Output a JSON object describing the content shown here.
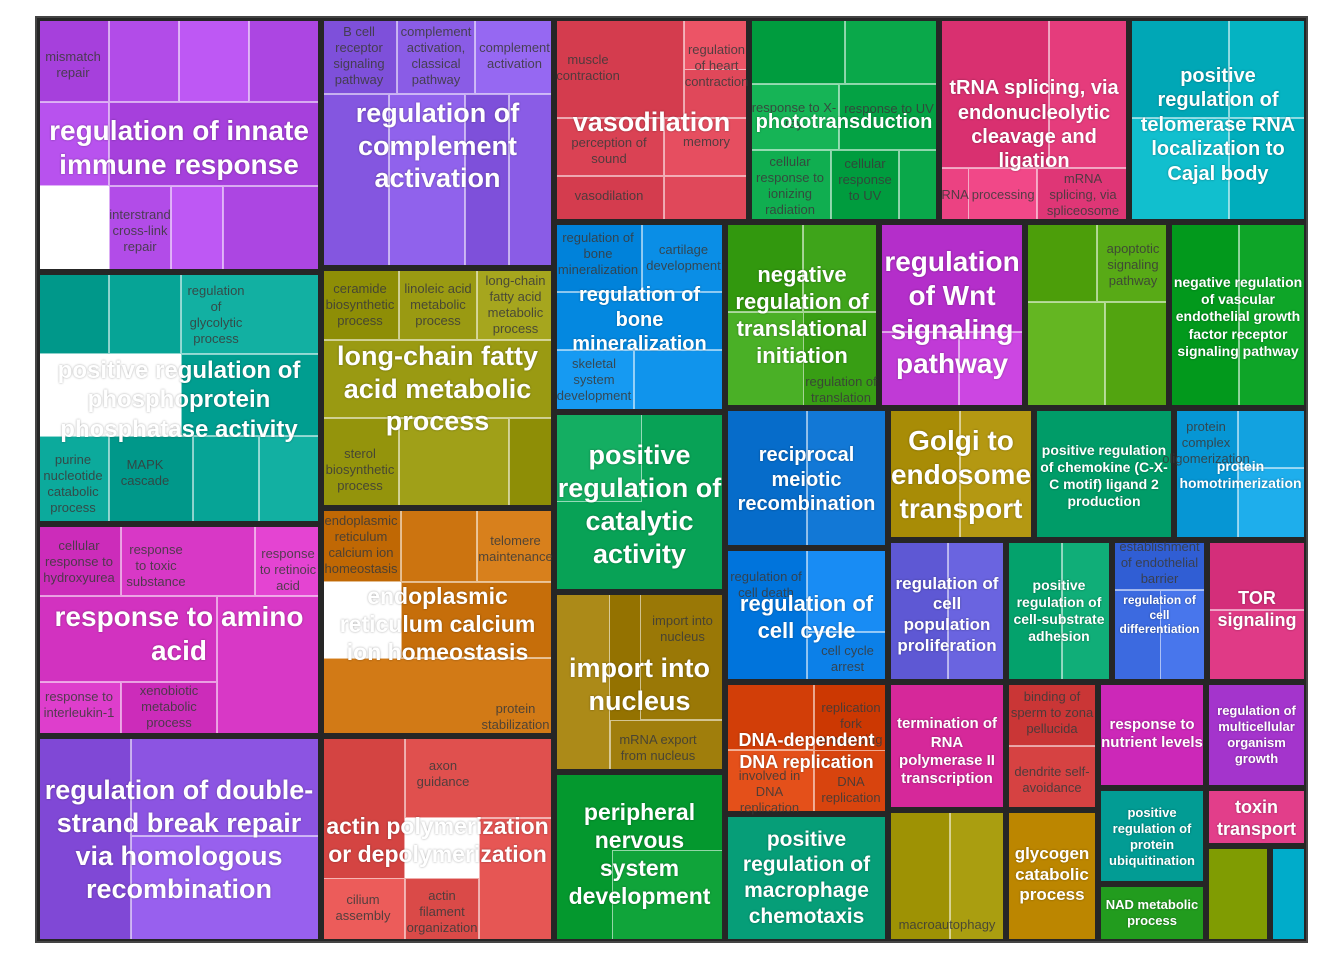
{
  "chart_data": {
    "type": "treemap",
    "groups": [
      {
        "name": "regulation of innate immune response",
        "color": "#b24ce8",
        "cells": [
          {
            "label": "mismatch repair"
          },
          {
            "label": ""
          },
          {
            "label": ""
          },
          {
            "label": ""
          },
          {
            "label": ""
          },
          {
            "label": "regulation of innate immune response"
          },
          {
            "label": "interstrand cross-link repair"
          },
          {
            "label": ""
          },
          {
            "label": ""
          }
        ]
      },
      {
        "name": "regulation of complement activation",
        "color": "#8a5ce6",
        "cells": [
          {
            "label": "B cell receptor signaling pathway"
          },
          {
            "label": "complement activation, classical pathway"
          },
          {
            "label": "complement activation"
          },
          {
            "label": ""
          },
          {
            "label": ""
          },
          {
            "label": ""
          },
          {
            "label": ""
          }
        ]
      },
      {
        "name": "vasodilation",
        "color": "#e0485a",
        "cells": [
          {
            "label": "muscle contraction"
          },
          {
            "label": ""
          },
          {
            "label": "regulation of heart contraction"
          },
          {
            "label": "perception of sound"
          },
          {
            "label": "memory"
          },
          {
            "label": "vasodilation"
          },
          {
            "label": ""
          }
        ]
      },
      {
        "name": "phototransduction",
        "color": "#0aa84a",
        "cells": [
          {
            "label": ""
          },
          {
            "label": ""
          },
          {
            "label": "response to X-ray"
          },
          {
            "label": "response to UV"
          },
          {
            "label": "cellular response to ionizing radiation"
          },
          {
            "label": "cellular response to UV"
          },
          {
            "label": ""
          }
        ]
      },
      {
        "name": "tRNA splicing, via endonucleolytic cleavage and ligation",
        "color": "#e53c7c",
        "cells": [
          {
            "label": ""
          },
          {
            "label": ""
          },
          {
            "label": "RNA processing"
          },
          {
            "label": "mRNA splicing, via spliceosome"
          },
          {
            "label": ""
          }
        ]
      },
      {
        "name": "positive regulation of telomerase RNA localization to Cajal body",
        "color": "#05b3c2",
        "cells": [
          {
            "label": ""
          },
          {
            "label": ""
          },
          {
            "label": ""
          },
          {
            "label": ""
          }
        ]
      },
      {
        "name": "positive regulation of phosphoprotein phosphatase activity",
        "color": "#06a496",
        "cells": [
          {
            "label": ""
          },
          {
            "label": ""
          },
          {
            "label": "regulation of glycolytic process"
          },
          {
            "label": ""
          },
          {
            "label": "purine nucleotide catabolic process"
          },
          {
            "label": "MAPK cascade"
          },
          {
            "label": ""
          },
          {
            "label": ""
          }
        ]
      },
      {
        "name": "long-chain fatty acid metabolic process",
        "color": "#9a9a12",
        "cells": [
          {
            "label": "ceramide biosynthetic process"
          },
          {
            "label": "linoleic acid metabolic process"
          },
          {
            "label": "long-chain fatty acid metabolic process"
          },
          {
            "label": "sterol biosynthetic process"
          },
          {
            "label": ""
          },
          {
            "label": ""
          },
          {
            "label": ""
          }
        ]
      },
      {
        "name": "regulation of bone mineralization",
        "color": "#0a8ee6",
        "cells": [
          {
            "label": "regulation of bone mineralization"
          },
          {
            "label": "cartilage development"
          },
          {
            "label": "skeletal system development"
          },
          {
            "label": ""
          },
          {
            "label": ""
          }
        ]
      },
      {
        "name": "negative regulation of translational initiation",
        "color": "#3ea41a",
        "cells": [
          {
            "label": ""
          },
          {
            "label": ""
          },
          {
            "label": "regulation of translation"
          },
          {
            "label": ""
          }
        ]
      },
      {
        "name": "regulation of Wnt signaling pathway",
        "color": "#c03ad6",
        "cells": [
          {
            "label": ""
          },
          {
            "label": ""
          },
          {
            "label": ""
          }
        ]
      },
      {
        "name": "apoptotic signaling pathway",
        "color": "#58aa16",
        "cells": [
          {
            "label": ""
          },
          {
            "label": "apoptotic signaling pathway"
          },
          {
            "label": ""
          },
          {
            "label": ""
          }
        ]
      },
      {
        "name": "negative regulation of vascular endothelial growth factor receptor signaling pathway",
        "color": "#0ea528",
        "cells": [
          {
            "label": ""
          },
          {
            "label": ""
          }
        ]
      },
      {
        "name": "response to amino acid",
        "color": "#d838c6",
        "cells": [
          {
            "label": "cellular response to hydroxyurea"
          },
          {
            "label": "response to toxic substance"
          },
          {
            "label": "response to retinoic acid"
          },
          {
            "label": "response to amino acid"
          },
          {
            "label": "response to interleukin-1"
          },
          {
            "label": "xenobiotic metabolic process"
          },
          {
            "label": ""
          }
        ]
      },
      {
        "name": "endoplasmic reticulum calcium ion homeostasis",
        "color": "#cc7410",
        "cells": [
          {
            "label": "endoplasmic reticulum calcium ion homeostasis"
          },
          {
            "label": "telomere maintenance"
          },
          {
            "label": ""
          },
          {
            "label": ""
          },
          {
            "label": "protein stabilization"
          }
        ]
      },
      {
        "name": "positive regulation of catalytic activity",
        "color": "#14ae62",
        "cells": [
          {
            "label": ""
          },
          {
            "label": ""
          }
        ]
      },
      {
        "name": "reciprocal meiotic recombination",
        "color": "#1278d6",
        "cells": [
          {
            "label": ""
          },
          {
            "label": ""
          }
        ]
      },
      {
        "name": "Golgi to endosome transport",
        "color": "#b49812",
        "cells": [
          {
            "label": ""
          },
          {
            "label": ""
          }
        ]
      },
      {
        "name": "positive regulation of chemokine (C-X-C motif) ligand 2 production",
        "color": "#0aa874",
        "cells": [
          {
            "label": ""
          }
        ]
      },
      {
        "name": "protein homotrimerization",
        "color": "#12a2e0",
        "cells": [
          {
            "label": "protein complex oligomerization"
          },
          {
            "label": ""
          },
          {
            "label": ""
          }
        ]
      },
      {
        "name": "import into nucleus",
        "color": "#a07e0c",
        "cells": [
          {
            "label": "import into nucleus"
          },
          {
            "label": "mRNA export from nucleus"
          },
          {
            "label": ""
          },
          {
            "label": ""
          }
        ]
      },
      {
        "name": "regulation of cell cycle",
        "color": "#0c80e8",
        "cells": [
          {
            "label": "regulation of cell death"
          },
          {
            "label": "cell cycle arrest"
          },
          {
            "label": ""
          }
        ]
      },
      {
        "name": "regulation of cell population proliferation",
        "color": "#6a64e0",
        "cells": [
          {
            "label": ""
          },
          {
            "label": ""
          }
        ]
      },
      {
        "name": "positive regulation of cell-substrate adhesion",
        "color": "#10ae78",
        "cells": [
          {
            "label": ""
          },
          {
            "label": ""
          }
        ]
      },
      {
        "name": "regulation of cell differentiation",
        "color": "#3c6ae0",
        "cells": [
          {
            "label": "establishment of endothelial barrier"
          },
          {
            "label": "regulation of cell differentiation"
          },
          {
            "label": ""
          }
        ]
      },
      {
        "name": "TOR signaling",
        "color": "#e03a86",
        "cells": [
          {
            "label": "TOR signaling"
          },
          {
            "label": ""
          }
        ]
      },
      {
        "name": "regulation of double-strand break repair via homologous recombination",
        "color": "#8c54e2",
        "cells": [
          {
            "label": ""
          },
          {
            "label": ""
          },
          {
            "label": ""
          }
        ]
      },
      {
        "name": "actin polymerization or depolymerization",
        "color": "#e0504e",
        "cells": [
          {
            "label": "axon guidance"
          },
          {
            "label": "cilium assembly"
          },
          {
            "label": "actin filament organization"
          },
          {
            "label": ""
          },
          {
            "label": ""
          }
        ]
      },
      {
        "name": "peripheral nervous system development",
        "color": "#10a43a",
        "cells": [
          {
            "label": ""
          },
          {
            "label": ""
          }
        ]
      },
      {
        "name": "DNA-dependent DNA replication",
        "color": "#d8440e",
        "cells": [
          {
            "label": "replication fork processing"
          },
          {
            "label": "DNA replication"
          },
          {
            "label": "involved in DNA replication"
          },
          {
            "label": ""
          }
        ]
      },
      {
        "name": "termination of RNA polymerase II transcription",
        "color": "#e234a6",
        "cells": [
          {
            "label": ""
          }
        ]
      },
      {
        "name": "binding of sperm to zona pellucida",
        "color": "#d64242",
        "cells": [
          {
            "label": "binding of sperm to zona pellucida"
          },
          {
            "label": "dendrite self-avoidance"
          }
        ]
      },
      {
        "name": "response to nutrient levels",
        "color": "#d834c4",
        "cells": [
          {
            "label": ""
          }
        ]
      },
      {
        "name": "regulation of multicellular organism growth",
        "color": "#b040d8",
        "cells": [
          {
            "label": ""
          }
        ]
      },
      {
        "name": "positive regulation of macrophage chemotaxis",
        "color": "#12aa84",
        "cells": [
          {
            "label": ""
          }
        ]
      },
      {
        "name": "macroautophagy",
        "color": "#aa9e10",
        "cells": [
          {
            "label": "macroautophagy"
          },
          {
            "label": ""
          }
        ]
      },
      {
        "name": "glycogen catabolic process",
        "color": "#c8920c",
        "cells": [
          {
            "label": ""
          }
        ]
      },
      {
        "name": "positive regulation of protein ubiquitination",
        "color": "#0ea8a0",
        "cells": [
          {
            "label": ""
          }
        ]
      },
      {
        "name": "NAD metabolic process",
        "color": "#2ea82a",
        "cells": [
          {
            "label": ""
          }
        ]
      },
      {
        "name": "toxin transport",
        "color": "#ee4a96",
        "cells": [
          {
            "label": ""
          }
        ]
      },
      {
        "name": "",
        "color": "#8ca80e",
        "cells": [
          {
            "label": ""
          }
        ]
      },
      {
        "name": "",
        "color": "#0ab8d6",
        "cells": [
          {
            "label": ""
          }
        ]
      }
    ],
    "big_labels": [
      "regulation of innate immune response",
      "regulation of complement activation",
      "vasodilation",
      "phototransduction",
      "tRNA splicing, via endonucleolytic cleavage and ligation",
      "positive regulation of telomerase RNA localization to Cajal body",
      "positive regulation of phosphoprotein phosphatase activity",
      "long-chain fatty acid metabolic process",
      "regulation of bone mineralization",
      "negative regulation of translational initiation",
      "regulation of Wnt signaling pathway",
      "negative regulation of vascular endothelial growth factor receptor signaling pathway",
      "response to amino acid",
      "endoplasmic reticulum calcium ion homeostasis",
      "positive regulation of catalytic activity",
      "reciprocal meiotic recombination",
      "Golgi to endosome transport",
      "positive regulation of chemokine (C-X-C motif) ligand 2 production",
      "protein homotrimerization",
      "import into nucleus",
      "regulation of cell cycle",
      "regulation of cell population proliferation",
      "positive regulation of cell-substrate adhesion",
      "regulation of cell differentiation",
      "TOR signaling",
      "regulation of double-strand break repair via homologous recombination",
      "actin polymerization or depolymerization",
      "peripheral nervous system development",
      "DNA-dependent DNA replication",
      "termination of RNA polymerase II transcription",
      "response to nutrient levels",
      "regulation of multicellular organism growth",
      "positive regulation of macrophage chemotaxis",
      "glycogen catabolic process",
      "positive regulation of protein ubiquitination",
      "NAD metabolic process",
      "toxin transport"
    ]
  }
}
